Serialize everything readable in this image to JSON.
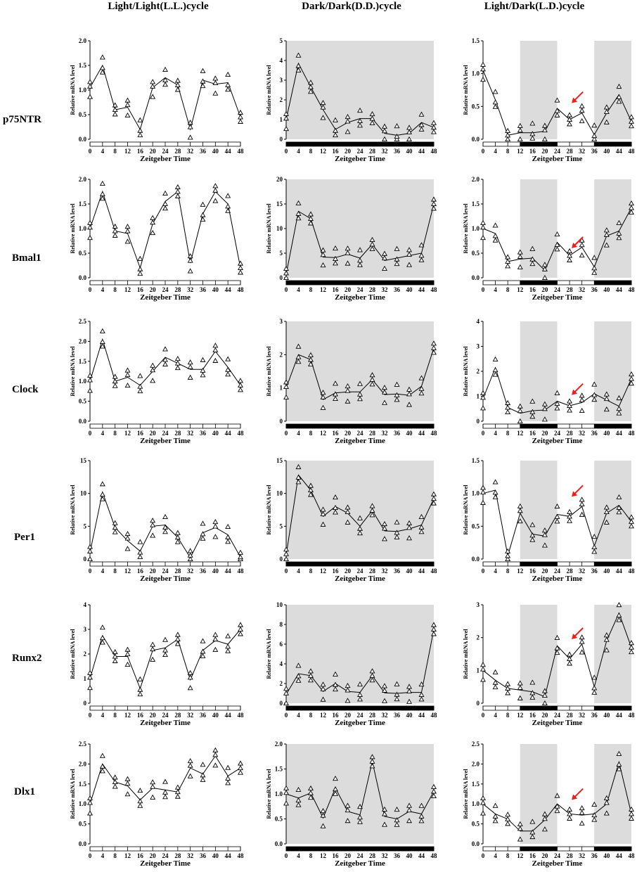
{
  "column_titles": [
    "Light/Light(L.L.)cycle",
    "Dark/Dark(D.D.)cycle",
    "Light/Dark(L.D.)cycle"
  ],
  "gene_labels": [
    "p75NTR",
    "Bmal1",
    "Clock",
    "Per1",
    "Runx2",
    "Dlx1"
  ],
  "colors": {
    "shade": "#dcdcdc",
    "arrow": "#e8221c",
    "line": "#000000"
  },
  "chart_data": [
    {
      "type": "line",
      "gene": "p75NTR",
      "condition": "L.L.",
      "title": "",
      "xlabel": "Zeitgeber Time",
      "ylabel": "Relative mRNA  level",
      "x": [
        0,
        4,
        8,
        12,
        16,
        20,
        24,
        28,
        32,
        36,
        40,
        44,
        48
      ],
      "xticks": [
        0,
        4,
        8,
        12,
        16,
        20,
        24,
        28,
        32,
        36,
        40,
        44,
        48
      ],
      "ylim": [
        0,
        2.0
      ],
      "yticks": [
        "0.0",
        "0.5",
        "1.0",
        "1.5",
        "2.0"
      ],
      "values": [
        1.05,
        1.5,
        0.6,
        0.65,
        0.2,
        1.05,
        1.25,
        1.1,
        0.2,
        1.2,
        1.12,
        1.15,
        0.45
      ],
      "light_bar": "LL",
      "shaded": [],
      "arrow_at": null
    },
    {
      "type": "line",
      "gene": "p75NTR",
      "condition": "D.D.",
      "title": "",
      "xlabel": "Zeitgeber Time",
      "ylabel": "Relative mRNA  level",
      "x": [
        0,
        4,
        8,
        12,
        16,
        20,
        24,
        28,
        32,
        36,
        40,
        44,
        48
      ],
      "xticks": [
        0,
        4,
        8,
        12,
        16,
        20,
        24,
        28,
        32,
        36,
        40,
        44,
        48
      ],
      "ylim": [
        0,
        5
      ],
      "yticks": [
        "0",
        "1",
        "2",
        "3",
        "4",
        "5"
      ],
      "values": [
        1.0,
        3.85,
        2.65,
        1.5,
        0.5,
        0.85,
        1.05,
        1.05,
        0.3,
        0.2,
        0.3,
        0.85,
        0.6
      ],
      "light_bar": "DD",
      "shaded": [
        [
          0,
          48
        ]
      ],
      "arrow_at": null
    },
    {
      "type": "line",
      "gene": "p75NTR",
      "condition": "L.D.",
      "title": "",
      "xlabel": "Zeitgeber Time",
      "ylabel": "Relative mRNA  level",
      "x": [
        0,
        4,
        8,
        12,
        16,
        20,
        24,
        28,
        32,
        36,
        40,
        44,
        48
      ],
      "xticks": [
        0,
        4,
        8,
        12,
        16,
        20,
        24,
        28,
        32,
        36,
        40,
        44,
        48
      ],
      "ylim": [
        0,
        1.5
      ],
      "yticks": [
        "0.0",
        "0.5",
        "1.0",
        "1.5"
      ],
      "values": [
        1.05,
        0.6,
        0.06,
        0.1,
        0.1,
        0.12,
        0.47,
        0.3,
        0.4,
        0.07,
        0.4,
        0.68,
        0.27
      ],
      "light_bar": "LD",
      "shaded": [
        [
          12,
          24
        ],
        [
          36,
          48
        ]
      ],
      "arrow_at": [
        28,
        0.55
      ]
    },
    {
      "type": "line",
      "gene": "Bmal1",
      "condition": "L.L.",
      "title": "",
      "xlabel": "Zeitgeber Time",
      "ylabel": "Relative mRNA  level",
      "x": [
        0,
        4,
        8,
        12,
        16,
        20,
        24,
        28,
        32,
        36,
        40,
        44,
        48
      ],
      "xticks": [
        0,
        4,
        8,
        12,
        16,
        20,
        24,
        28,
        32,
        36,
        40,
        44,
        48
      ],
      "ylim": [
        0,
        2.0
      ],
      "yticks": [
        "0.0",
        "0.5",
        "1.0",
        "1.5",
        "2.0"
      ],
      "values": [
        1.0,
        1.75,
        0.95,
        0.9,
        0.2,
        1.1,
        1.55,
        1.75,
        0.3,
        1.3,
        1.75,
        1.5,
        0.2
      ],
      "light_bar": "LL",
      "shaded": [],
      "arrow_at": null
    },
    {
      "type": "line",
      "gene": "Bmal1",
      "condition": "D.D.",
      "title": "",
      "xlabel": "Zeitgeber Time",
      "ylabel": "Relative mRNA  level",
      "x": [
        0,
        4,
        8,
        12,
        16,
        20,
        24,
        28,
        32,
        36,
        40,
        44,
        48
      ],
      "xticks": [
        0,
        4,
        8,
        12,
        16,
        20,
        24,
        28,
        32,
        36,
        40,
        44,
        48
      ],
      "ylim": [
        0,
        20
      ],
      "yticks": [
        "0",
        "5",
        "10",
        "15",
        "20"
      ],
      "values": [
        0.7,
        13.5,
        12.0,
        4.2,
        4.1,
        4.8,
        4.0,
        6.8,
        3.5,
        4.0,
        4.5,
        5.0,
        15.0
      ],
      "light_bar": "DD",
      "shaded": [
        [
          0,
          48
        ]
      ],
      "arrow_at": null
    },
    {
      "type": "line",
      "gene": "Bmal1",
      "condition": "L.D.",
      "title": "",
      "xlabel": "Zeitgeber Time",
      "ylabel": "Relative mRNA  level",
      "x": [
        0,
        4,
        8,
        12,
        16,
        20,
        24,
        28,
        32,
        36,
        40,
        44,
        48
      ],
      "xticks": [
        0,
        4,
        8,
        12,
        16,
        20,
        24,
        28,
        32,
        36,
        40,
        44,
        48
      ],
      "ylim": [
        0,
        2.0
      ],
      "yticks": [
        "0.0",
        "0.5",
        "1.0",
        "1.5",
        "2.0"
      ],
      "values": [
        1.0,
        0.9,
        0.33,
        0.38,
        0.4,
        0.15,
        0.72,
        0.45,
        0.62,
        0.22,
        0.85,
        0.95,
        1.42
      ],
      "light_bar": "LD",
      "shaded": [
        [
          12,
          24
        ],
        [
          36,
          48
        ]
      ],
      "arrow_at": [
        28,
        0.6
      ]
    },
    {
      "type": "line",
      "gene": "Clock",
      "condition": "L.L.",
      "title": "",
      "xlabel": "Zeitgeber Time",
      "ylabel": "Relative mRNA  level",
      "x": [
        0,
        4,
        8,
        12,
        16,
        20,
        24,
        28,
        32,
        36,
        40,
        44,
        48
      ],
      "xticks": [
        0,
        4,
        8,
        12,
        16,
        20,
        24,
        28,
        32,
        36,
        40,
        44,
        48
      ],
      "ylim": [
        0,
        2.5
      ],
      "yticks": [
        "0.0",
        "0.5",
        "1.0",
        "1.5",
        "2.0",
        "2.5"
      ],
      "values": [
        1.0,
        2.05,
        1.0,
        1.1,
        0.9,
        1.25,
        1.6,
        1.45,
        1.3,
        1.3,
        1.75,
        1.35,
        0.9
      ],
      "light_bar": "LL",
      "shaded": [],
      "arrow_at": null
    },
    {
      "type": "line",
      "gene": "Clock",
      "condition": "D.D.",
      "title": "",
      "xlabel": "Zeitgeber Time",
      "ylabel": "Relative mRNA  level",
      "x": [
        0,
        4,
        8,
        12,
        16,
        20,
        24,
        28,
        32,
        36,
        40,
        44,
        48
      ],
      "xticks": [
        0,
        4,
        8,
        12,
        16,
        20,
        24,
        28,
        32,
        36,
        40,
        44,
        48
      ],
      "ylim": [
        0,
        3
      ],
      "yticks": [
        "0",
        "1",
        "2",
        "3"
      ],
      "values": [
        1.0,
        2.0,
        1.85,
        0.65,
        0.85,
        0.88,
        0.88,
        1.25,
        0.8,
        0.82,
        0.78,
        1.05,
        2.2
      ],
      "light_bar": "DD",
      "shaded": [
        [
          0,
          48
        ]
      ],
      "arrow_at": null
    },
    {
      "type": "line",
      "gene": "Clock",
      "condition": "L.D.",
      "title": "",
      "xlabel": "Zeitgeber Time",
      "ylabel": "Relative mRNA  level",
      "x": [
        0,
        4,
        8,
        12,
        16,
        20,
        24,
        28,
        32,
        36,
        40,
        44,
        48
      ],
      "xticks": [
        0,
        4,
        8,
        12,
        16,
        20,
        24,
        28,
        32,
        36,
        40,
        44,
        48
      ],
      "ylim": [
        0,
        4
      ],
      "yticks": [
        "0",
        "1",
        "2",
        "3",
        "4"
      ],
      "values": [
        0.9,
        2.15,
        0.55,
        0.32,
        0.42,
        0.45,
        0.8,
        0.62,
        0.75,
        1.1,
        0.85,
        0.6,
        1.7
      ],
      "light_bar": "LD",
      "shaded": [
        [
          12,
          24
        ],
        [
          36,
          48
        ]
      ],
      "arrow_at": [
        28,
        1.05
      ]
    },
    {
      "type": "line",
      "gene": "Per1",
      "condition": "L.L.",
      "title": "",
      "xlabel": "Zeitgeber Time",
      "ylabel": "Relative mRNA  level",
      "x": [
        0,
        4,
        8,
        12,
        16,
        20,
        24,
        28,
        32,
        36,
        40,
        44,
        48
      ],
      "xticks": [
        0,
        4,
        8,
        12,
        16,
        20,
        24,
        28,
        32,
        36,
        40,
        44,
        48
      ],
      "ylim": [
        0,
        15
      ],
      "yticks": [
        "0",
        "5",
        "10",
        "15"
      ],
      "values": [
        1.0,
        10.2,
        4.8,
        2.8,
        1.2,
        5.0,
        5.2,
        3.3,
        0.2,
        4.0,
        4.8,
        3.7,
        0.3
      ],
      "light_bar": "LL",
      "shaded": [],
      "arrow_at": null
    },
    {
      "type": "line",
      "gene": "Per1",
      "condition": "D.D.",
      "title": "",
      "xlabel": "Zeitgeber Time",
      "ylabel": "Relative mRNA  level",
      "x": [
        0,
        4,
        8,
        12,
        16,
        20,
        24,
        28,
        32,
        36,
        40,
        44,
        48
      ],
      "xticks": [
        0,
        4,
        8,
        12,
        16,
        20,
        24,
        28,
        32,
        36,
        40,
        44,
        48
      ],
      "ylim": [
        0,
        15
      ],
      "yticks": [
        "0",
        "5",
        "10",
        "15"
      ],
      "values": [
        0.6,
        12.8,
        10.5,
        6.5,
        8.0,
        7.0,
        5.0,
        7.4,
        4.3,
        4.2,
        4.6,
        5.2,
        9.2
      ],
      "light_bar": "DD",
      "shaded": [
        [
          0,
          48
        ]
      ],
      "arrow_at": null
    },
    {
      "type": "line",
      "gene": "Per1",
      "condition": "L.D.",
      "title": "",
      "xlabel": "Zeitgeber Time",
      "ylabel": "Relative mRNA  level",
      "x": [
        0,
        4,
        8,
        12,
        16,
        20,
        24,
        28,
        32,
        36,
        40,
        44,
        48
      ],
      "xticks": [
        0,
        4,
        8,
        12,
        16,
        20,
        24,
        28,
        32,
        36,
        40,
        44,
        48
      ],
      "ylim": [
        0,
        1.5
      ],
      "yticks": [
        "0.0",
        "0.5",
        "1.0",
        "1.5"
      ],
      "values": [
        1.0,
        1.05,
        0.05,
        0.7,
        0.38,
        0.35,
        0.68,
        0.65,
        0.8,
        0.2,
        0.7,
        0.82,
        0.57
      ],
      "light_bar": "LD",
      "shaded": [
        [
          12,
          24
        ],
        [
          36,
          48
        ]
      ],
      "arrow_at": [
        28,
        0.95
      ]
    },
    {
      "type": "line",
      "gene": "Runx2",
      "condition": "L.L.",
      "title": "",
      "xlabel": "Zeitgeber Time",
      "ylabel": "Relative mRNA  level",
      "x": [
        0,
        4,
        8,
        12,
        16,
        20,
        24,
        28,
        32,
        36,
        40,
        44,
        48
      ],
      "xticks": [
        0,
        4,
        8,
        12,
        16,
        20,
        24,
        28,
        32,
        36,
        40,
        44,
        48
      ],
      "ylim": [
        0,
        4
      ],
      "yticks": [
        "0",
        "1",
        "2",
        "3",
        "4"
      ],
      "values": [
        1.0,
        2.75,
        1.9,
        1.9,
        0.6,
        2.15,
        2.25,
        2.6,
        0.95,
        2.15,
        2.55,
        2.4,
        3.0
      ],
      "light_bar": "LL",
      "shaded": [],
      "arrow_at": null
    },
    {
      "type": "line",
      "gene": "Runx2",
      "condition": "D.D.",
      "title": "",
      "xlabel": "Zeitgeber Time",
      "ylabel": "Relative mRNA  level",
      "x": [
        0,
        4,
        8,
        12,
        16,
        20,
        24,
        28,
        32,
        36,
        40,
        44,
        48
      ],
      "xticks": [
        0,
        4,
        8,
        12,
        16,
        20,
        24,
        28,
        32,
        36,
        40,
        44,
        48
      ],
      "ylim": [
        0,
        10
      ],
      "yticks": [
        "0",
        "2",
        "4",
        "6",
        "8",
        "10"
      ],
      "values": [
        0.9,
        3.0,
        2.8,
        1.2,
        2.0,
        1.2,
        1.1,
        2.8,
        1.05,
        1.0,
        1.1,
        1.1,
        7.5
      ],
      "light_bar": "DD",
      "shaded": [
        [
          0,
          48
        ]
      ],
      "arrow_at": null
    },
    {
      "type": "line",
      "gene": "Runx2",
      "condition": "L.D.",
      "title": "",
      "xlabel": "Zeitgeber Time",
      "ylabel": "Relative mRNA  level",
      "x": [
        0,
        4,
        8,
        12,
        16,
        20,
        24,
        28,
        32,
        36,
        40,
        44,
        48
      ],
      "xticks": [
        0,
        4,
        8,
        12,
        16,
        20,
        24,
        28,
        32,
        36,
        40,
        44,
        48
      ],
      "ylim": [
        0,
        3
      ],
      "yticks": [
        "0",
        "1",
        "2",
        "3"
      ],
      "values": [
        1.0,
        0.7,
        0.45,
        0.4,
        0.35,
        0.2,
        1.75,
        1.35,
        1.8,
        0.5,
        1.9,
        2.75,
        1.7
      ],
      "light_bar": "LD",
      "shaded": [
        [
          12,
          24
        ],
        [
          36,
          48
        ]
      ],
      "arrow_at": [
        28,
        1.95
      ]
    },
    {
      "type": "line",
      "gene": "Dlx1",
      "condition": "L.L.",
      "title": "",
      "xlabel": "Zeitgeber Time",
      "ylabel": "Relative mRNA  level",
      "x": [
        0,
        4,
        8,
        12,
        16,
        20,
        24,
        28,
        32,
        36,
        40,
        44,
        48
      ],
      "xticks": [
        0,
        4,
        8,
        12,
        16,
        20,
        24,
        28,
        32,
        36,
        40,
        44,
        48
      ],
      "ylim": [
        0,
        2.5
      ],
      "yticks": [
        "0.0",
        "0.5",
        "1.0",
        "1.5",
        "2.0",
        "2.5"
      ],
      "values": [
        1.0,
        2.0,
        1.55,
        1.45,
        1.1,
        1.4,
        1.35,
        1.3,
        1.9,
        1.75,
        2.2,
        1.7,
        1.9
      ],
      "light_bar": "LL",
      "shaded": [],
      "arrow_at": null
    },
    {
      "type": "line",
      "gene": "Dlx1",
      "condition": "D.D.",
      "title": "",
      "xlabel": "Zeitgeber Time",
      "ylabel": "Relative mRNA  level",
      "x": [
        0,
        4,
        8,
        12,
        16,
        20,
        24,
        28,
        32,
        36,
        40,
        44,
        48
      ],
      "xticks": [
        0,
        4,
        8,
        12,
        16,
        20,
        24,
        28,
        32,
        36,
        40,
        44,
        48
      ],
      "ylim": [
        0,
        2.0
      ],
      "yticks": [
        "0.0",
        "0.5",
        "1.0",
        "1.5",
        "2.0"
      ],
      "values": [
        1.0,
        0.92,
        1.02,
        0.52,
        1.12,
        0.65,
        0.58,
        1.65,
        0.55,
        0.5,
        0.65,
        0.6,
        1.05
      ],
      "light_bar": "DD",
      "shaded": [
        [
          0,
          48
        ]
      ],
      "arrow_at": null
    },
    {
      "type": "line",
      "gene": "Dlx1",
      "condition": "L.D.",
      "title": "",
      "xlabel": "Zeitgeber Time",
      "ylabel": "Relative mRNA  level",
      "x": [
        0,
        4,
        8,
        12,
        16,
        20,
        24,
        28,
        32,
        36,
        40,
        44,
        48
      ],
      "xticks": [
        0,
        4,
        8,
        12,
        16,
        20,
        24,
        28,
        32,
        36,
        40,
        44,
        48
      ],
      "ylim": [
        0,
        2.5
      ],
      "yticks": [
        "0.0",
        "0.5",
        "1.0",
        "1.5",
        "2.0",
        "2.5"
      ],
      "values": [
        1.0,
        0.75,
        0.62,
        0.32,
        0.32,
        0.6,
        1.0,
        0.75,
        0.72,
        0.75,
        1.0,
        2.05,
        0.75
      ],
      "light_bar": "LD",
      "shaded": [
        [
          12,
          24
        ],
        [
          36,
          48
        ]
      ],
      "arrow_at": [
        28,
        1.1
      ]
    }
  ]
}
